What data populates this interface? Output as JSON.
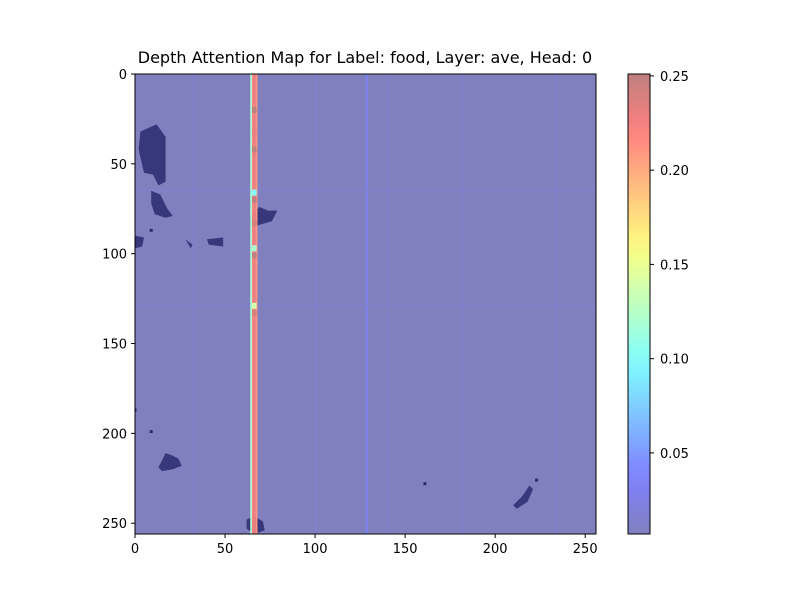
{
  "chart_data": {
    "type": "heatmap",
    "title": "Depth Attention Map for Label: food, Layer: ave, Head: 0",
    "xlabel": "",
    "ylabel": "",
    "xlim": [
      0,
      256
    ],
    "ylim": [
      256,
      0
    ],
    "xticks": [
      0,
      50,
      100,
      150,
      200,
      250
    ],
    "yticks": [
      0,
      50,
      100,
      150,
      200,
      250
    ],
    "colormap": "jet",
    "alpha": 0.5,
    "background_value": 0.007,
    "colorbar": {
      "range": [
        0.007,
        0.251
      ],
      "ticks": [
        "0.05",
        "0.10",
        "0.15",
        "0.20",
        "0.25"
      ],
      "tick_values": [
        0.05,
        0.1,
        0.15,
        0.2,
        0.25
      ]
    },
    "columns": [
      {
        "x": 64,
        "value": 0.12
      },
      {
        "x": 65,
        "value": 0.22
      },
      {
        "x": 66,
        "value": 0.23
      },
      {
        "x": 67,
        "value": 0.21
      }
    ],
    "column_hotspots": [
      {
        "y": 20,
        "value": 0.25
      },
      {
        "y": 33,
        "value": 0.23
      },
      {
        "y": 42,
        "value": 0.25
      },
      {
        "y": 66,
        "value": 0.1
      },
      {
        "y": 70,
        "value": 0.25
      },
      {
        "y": 83,
        "value": 0.24
      },
      {
        "y": 97,
        "value": 0.12
      },
      {
        "y": 101,
        "value": 0.25
      },
      {
        "y": 129,
        "value": 0.14
      },
      {
        "y": 133,
        "value": 0.24
      }
    ],
    "faint_columns": [
      {
        "x": 32,
        "value": 0.012
      },
      {
        "x": 100,
        "value": 0.013
      },
      {
        "x": 128,
        "value": 0.03
      },
      {
        "x": 140,
        "value": 0.011
      },
      {
        "x": 181,
        "value": 0.012
      },
      {
        "x": 233,
        "value": 0.012
      }
    ],
    "faint_rows": [
      {
        "y": 64,
        "value": 0.012
      },
      {
        "y": 128,
        "value": 0.011
      }
    ],
    "dark_regions": [
      {
        "label": "blob-upper-left",
        "points": [
          [
            3,
            32
          ],
          [
            12,
            28
          ],
          [
            17,
            35
          ],
          [
            17,
            60
          ],
          [
            13,
            62
          ],
          [
            10,
            56
          ],
          [
            5,
            55
          ],
          [
            2,
            42
          ]
        ]
      },
      {
        "label": "blob-left-mid",
        "points": [
          [
            9,
            65
          ],
          [
            14,
            67
          ],
          [
            18,
            75
          ],
          [
            21,
            79
          ],
          [
            17,
            80
          ],
          [
            11,
            78
          ],
          [
            9,
            72
          ]
        ]
      },
      {
        "label": "blob-center",
        "points": [
          [
            64,
            79
          ],
          [
            69,
            74
          ],
          [
            74,
            76
          ],
          [
            79,
            76
          ],
          [
            76,
            82
          ],
          [
            69,
            84
          ],
          [
            64,
            86
          ]
        ]
      },
      {
        "label": "blob-left-edge",
        "points": [
          [
            0,
            90
          ],
          [
            5,
            91
          ],
          [
            4,
            96
          ],
          [
            0,
            97
          ]
        ]
      },
      {
        "label": "blob-small-a",
        "points": [
          [
            28,
            92
          ],
          [
            32,
            95
          ],
          [
            31,
            97
          ]
        ]
      },
      {
        "label": "blob-small-b",
        "points": [
          [
            40,
            92
          ],
          [
            49,
            91
          ],
          [
            49,
            96
          ],
          [
            41,
            95
          ]
        ]
      },
      {
        "label": "blob-lower-left",
        "points": [
          [
            13,
            219
          ],
          [
            17,
            211
          ],
          [
            20,
            212
          ],
          [
            24,
            214
          ],
          [
            26,
            218
          ],
          [
            21,
            220
          ],
          [
            15,
            221
          ]
        ]
      },
      {
        "label": "blob-bottom-center",
        "points": [
          [
            62,
            248
          ],
          [
            66,
            246
          ],
          [
            71,
            249
          ],
          [
            72,
            254
          ],
          [
            66,
            256
          ],
          [
            62,
            253
          ]
        ]
      },
      {
        "label": "blob-lower-right",
        "points": [
          [
            210,
            240
          ],
          [
            215,
            235
          ],
          [
            219,
            229
          ],
          [
            221,
            231
          ],
          [
            218,
            238
          ],
          [
            212,
            242
          ]
        ]
      }
    ],
    "dark_dots": [
      {
        "x": 9,
        "y": 87
      },
      {
        "x": 0,
        "y": 187
      },
      {
        "x": 9,
        "y": 199
      },
      {
        "x": 161,
        "y": 228
      },
      {
        "x": 223,
        "y": 226
      }
    ]
  }
}
